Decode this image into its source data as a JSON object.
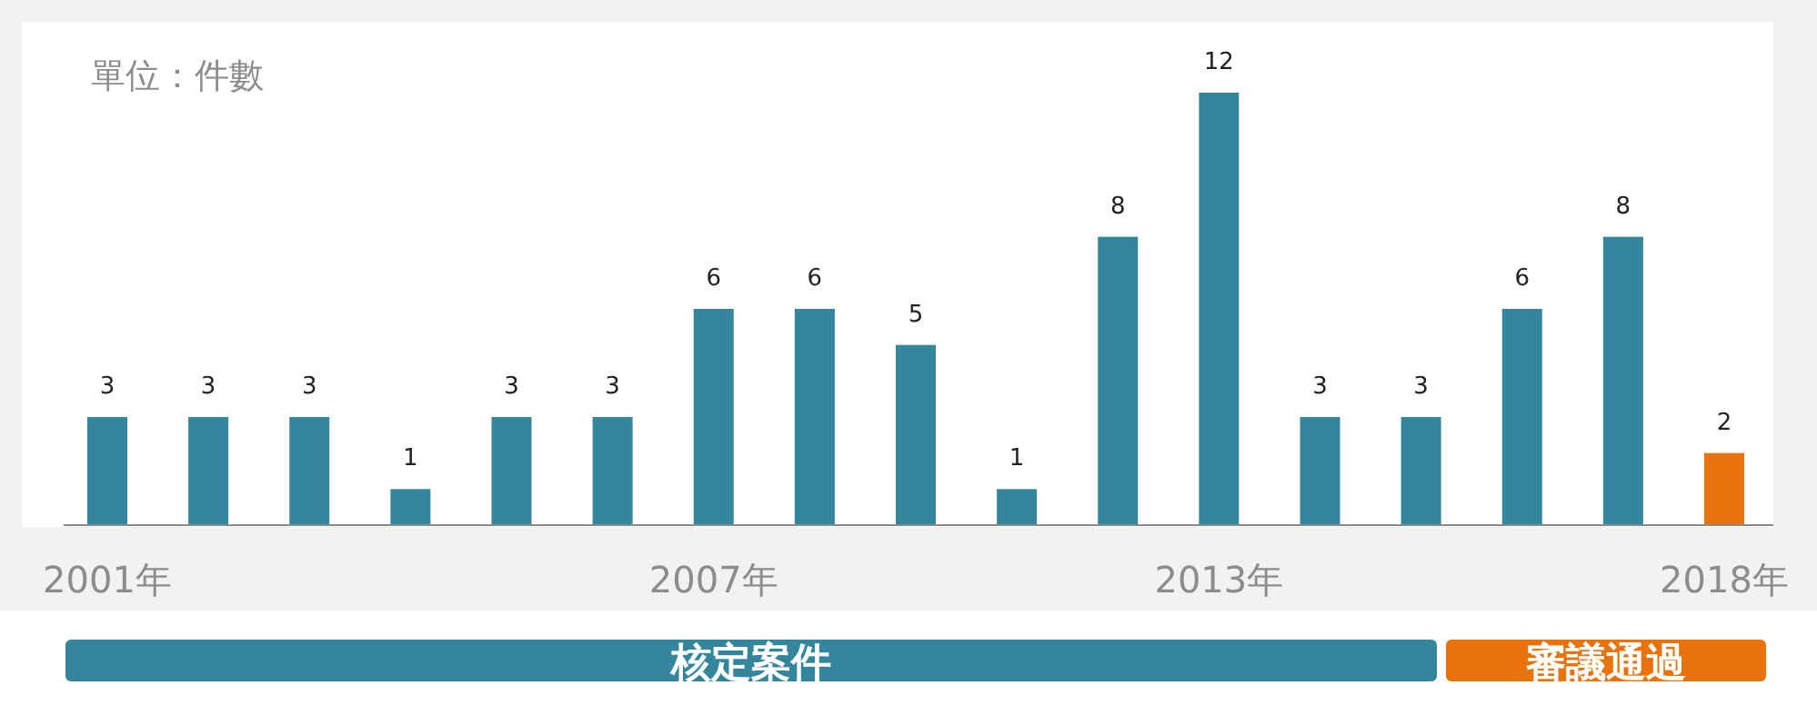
{
  "chart_data": {
    "type": "bar",
    "categories": [
      "2001年",
      null,
      null,
      null,
      null,
      null,
      "2007年",
      null,
      null,
      null,
      null,
      "2013年",
      null,
      null,
      null,
      null,
      "2018年"
    ],
    "values": [
      3,
      3,
      3,
      1,
      3,
      3,
      6,
      6,
      5,
      1,
      8,
      12,
      3,
      3,
      6,
      8,
      2
    ],
    "colors": [
      "#33869c",
      "#33869c",
      "#33869c",
      "#33869c",
      "#33869c",
      "#33869c",
      "#33869c",
      "#33869c",
      "#33869c",
      "#33869c",
      "#33869c",
      "#33869c",
      "#33869c",
      "#33869c",
      "#33869c",
      "#33869c",
      "#e8730c"
    ],
    "data_labels": true,
    "annotations": [
      "單位：件數",
      "核定案件",
      "審議通過"
    ]
  }
}
